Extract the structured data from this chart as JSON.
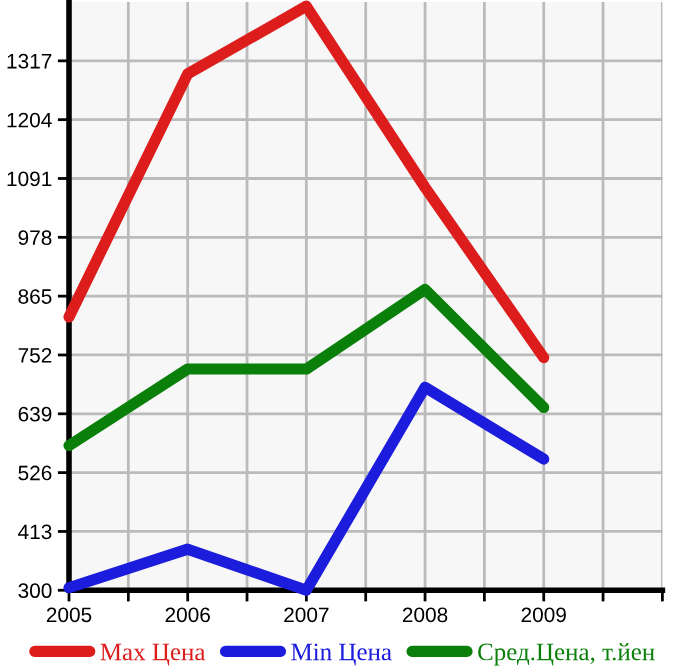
{
  "chart_data": {
    "type": "line",
    "x": [
      2005,
      2006,
      2007,
      2008,
      2009
    ],
    "series": [
      {
        "name": "Max Цена",
        "color": "#dd1c1c",
        "values": [
          825,
          1292,
          1422,
          1074,
          747
        ]
      },
      {
        "name": "Min Цена",
        "color": "#1c1cdd",
        "values": [
          305,
          379,
          300,
          690,
          552
        ]
      },
      {
        "name": "Сред.Цена, т.йен",
        "color": "#0a800a",
        "values": [
          578,
          725,
          725,
          878,
          651
        ]
      }
    ],
    "xlim": [
      2005,
      2010
    ],
    "xticks": [
      2005,
      {
        "value": 2005.5,
        "label": null
      },
      2006,
      {
        "value": 2006.5,
        "label": null
      },
      2007,
      {
        "value": 2007.5,
        "label": null
      },
      2008,
      {
        "value": 2008.5,
        "label": null
      },
      2009,
      {
        "value": 2009.5,
        "label": null
      },
      {
        "value": 2010,
        "label": null
      }
    ],
    "ylim": [
      300,
      1430
    ],
    "yticks": [
      300,
      413,
      526,
      639,
      752,
      865,
      978,
      1091,
      1204,
      1317
    ],
    "grid": true,
    "legend": "bottom",
    "marker": "none",
    "line_style": "solid"
  }
}
